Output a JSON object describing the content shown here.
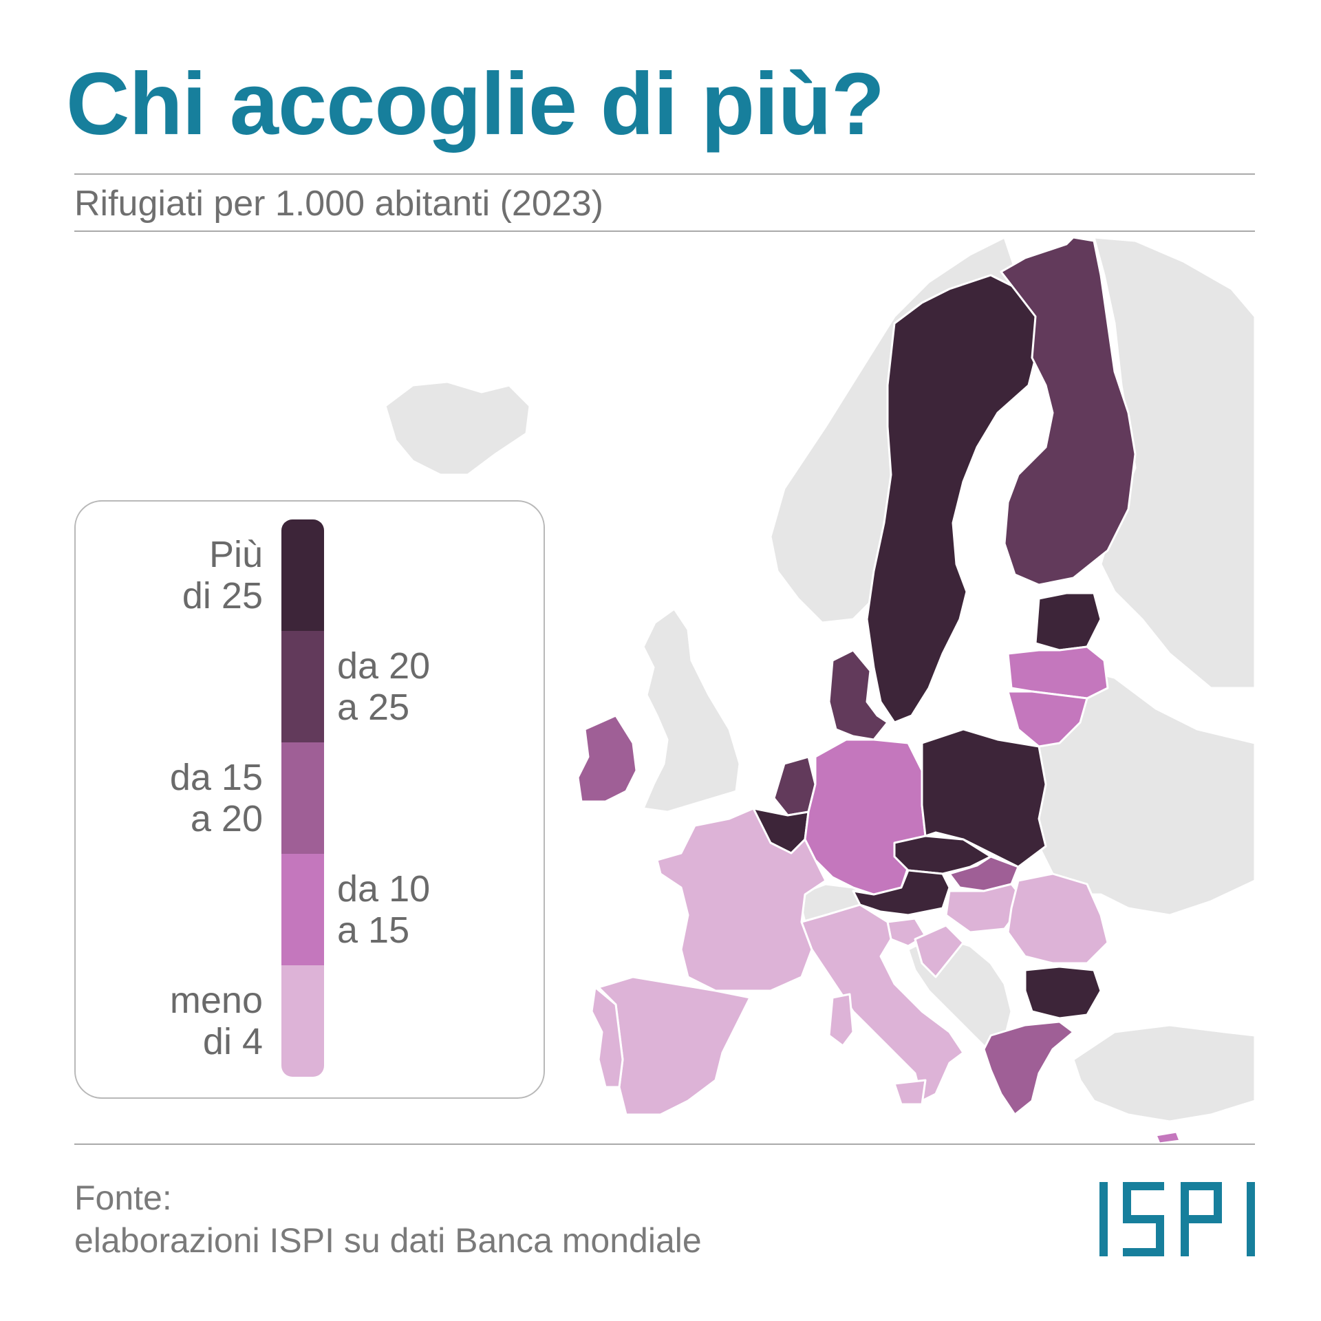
{
  "title": "Chi accoglie di più?",
  "subtitle": "Rifugiati per 1.000 abitanti (2023)",
  "colors": {
    "title": "#177f9c",
    "non_eu": "#e6e6e6",
    "class_more_25": "#3d2539",
    "class_20_25": "#623a5b",
    "class_15_20": "#9f5f96",
    "class_10_15": "#c477bd",
    "class_less_4": "#ddb3d7"
  },
  "legend": {
    "classes": [
      {
        "label": "Più\ndi 25",
        "color": "#3d2539",
        "side": "left"
      },
      {
        "label": "da 20\na 25",
        "color": "#623a5b",
        "side": "right"
      },
      {
        "label": "da 15\na 20",
        "color": "#9f5f96",
        "side": "left"
      },
      {
        "label": "da 10\na 15",
        "color": "#c477bd",
        "side": "right"
      },
      {
        "label": "meno\ndi 4",
        "color": "#ddb3d7",
        "side": "left"
      }
    ]
  },
  "map_classes": {
    "Svezia": "Più di 25",
    "Estonia": "Più di 25",
    "Polonia": "Più di 25",
    "Repubblica Ceca": "Più di 25",
    "Austria": "Più di 25",
    "Bulgaria": "Più di 25",
    "Belgio": "Più di 25",
    "Finlandia": "da 20 a 25",
    "Danimarca": "da 20 a 25",
    "Paesi Bassi": "da 20 a 25",
    "Irlanda": "da 15 a 20",
    "Slovacchia": "da 15 a 20",
    "Grecia": "da 15 a 20",
    "Germania": "da 10 a 15",
    "Lettonia": "da 10 a 15",
    "Lituania": "da 10 a 15",
    "Cipro": "da 10 a 15",
    "Francia": "meno di 4",
    "Spagna": "meno di 4",
    "Portogallo": "meno di 4",
    "Italia": "meno di 4",
    "Ungheria": "meno di 4",
    "Romania": "meno di 4",
    "Slovenia": "meno di 4",
    "Croazia": "meno di 4"
  },
  "source": {
    "line1": "Fonte:",
    "line2": "elaborazioni ISPI su dati Banca mondiale"
  },
  "logo_text": "ISPI"
}
